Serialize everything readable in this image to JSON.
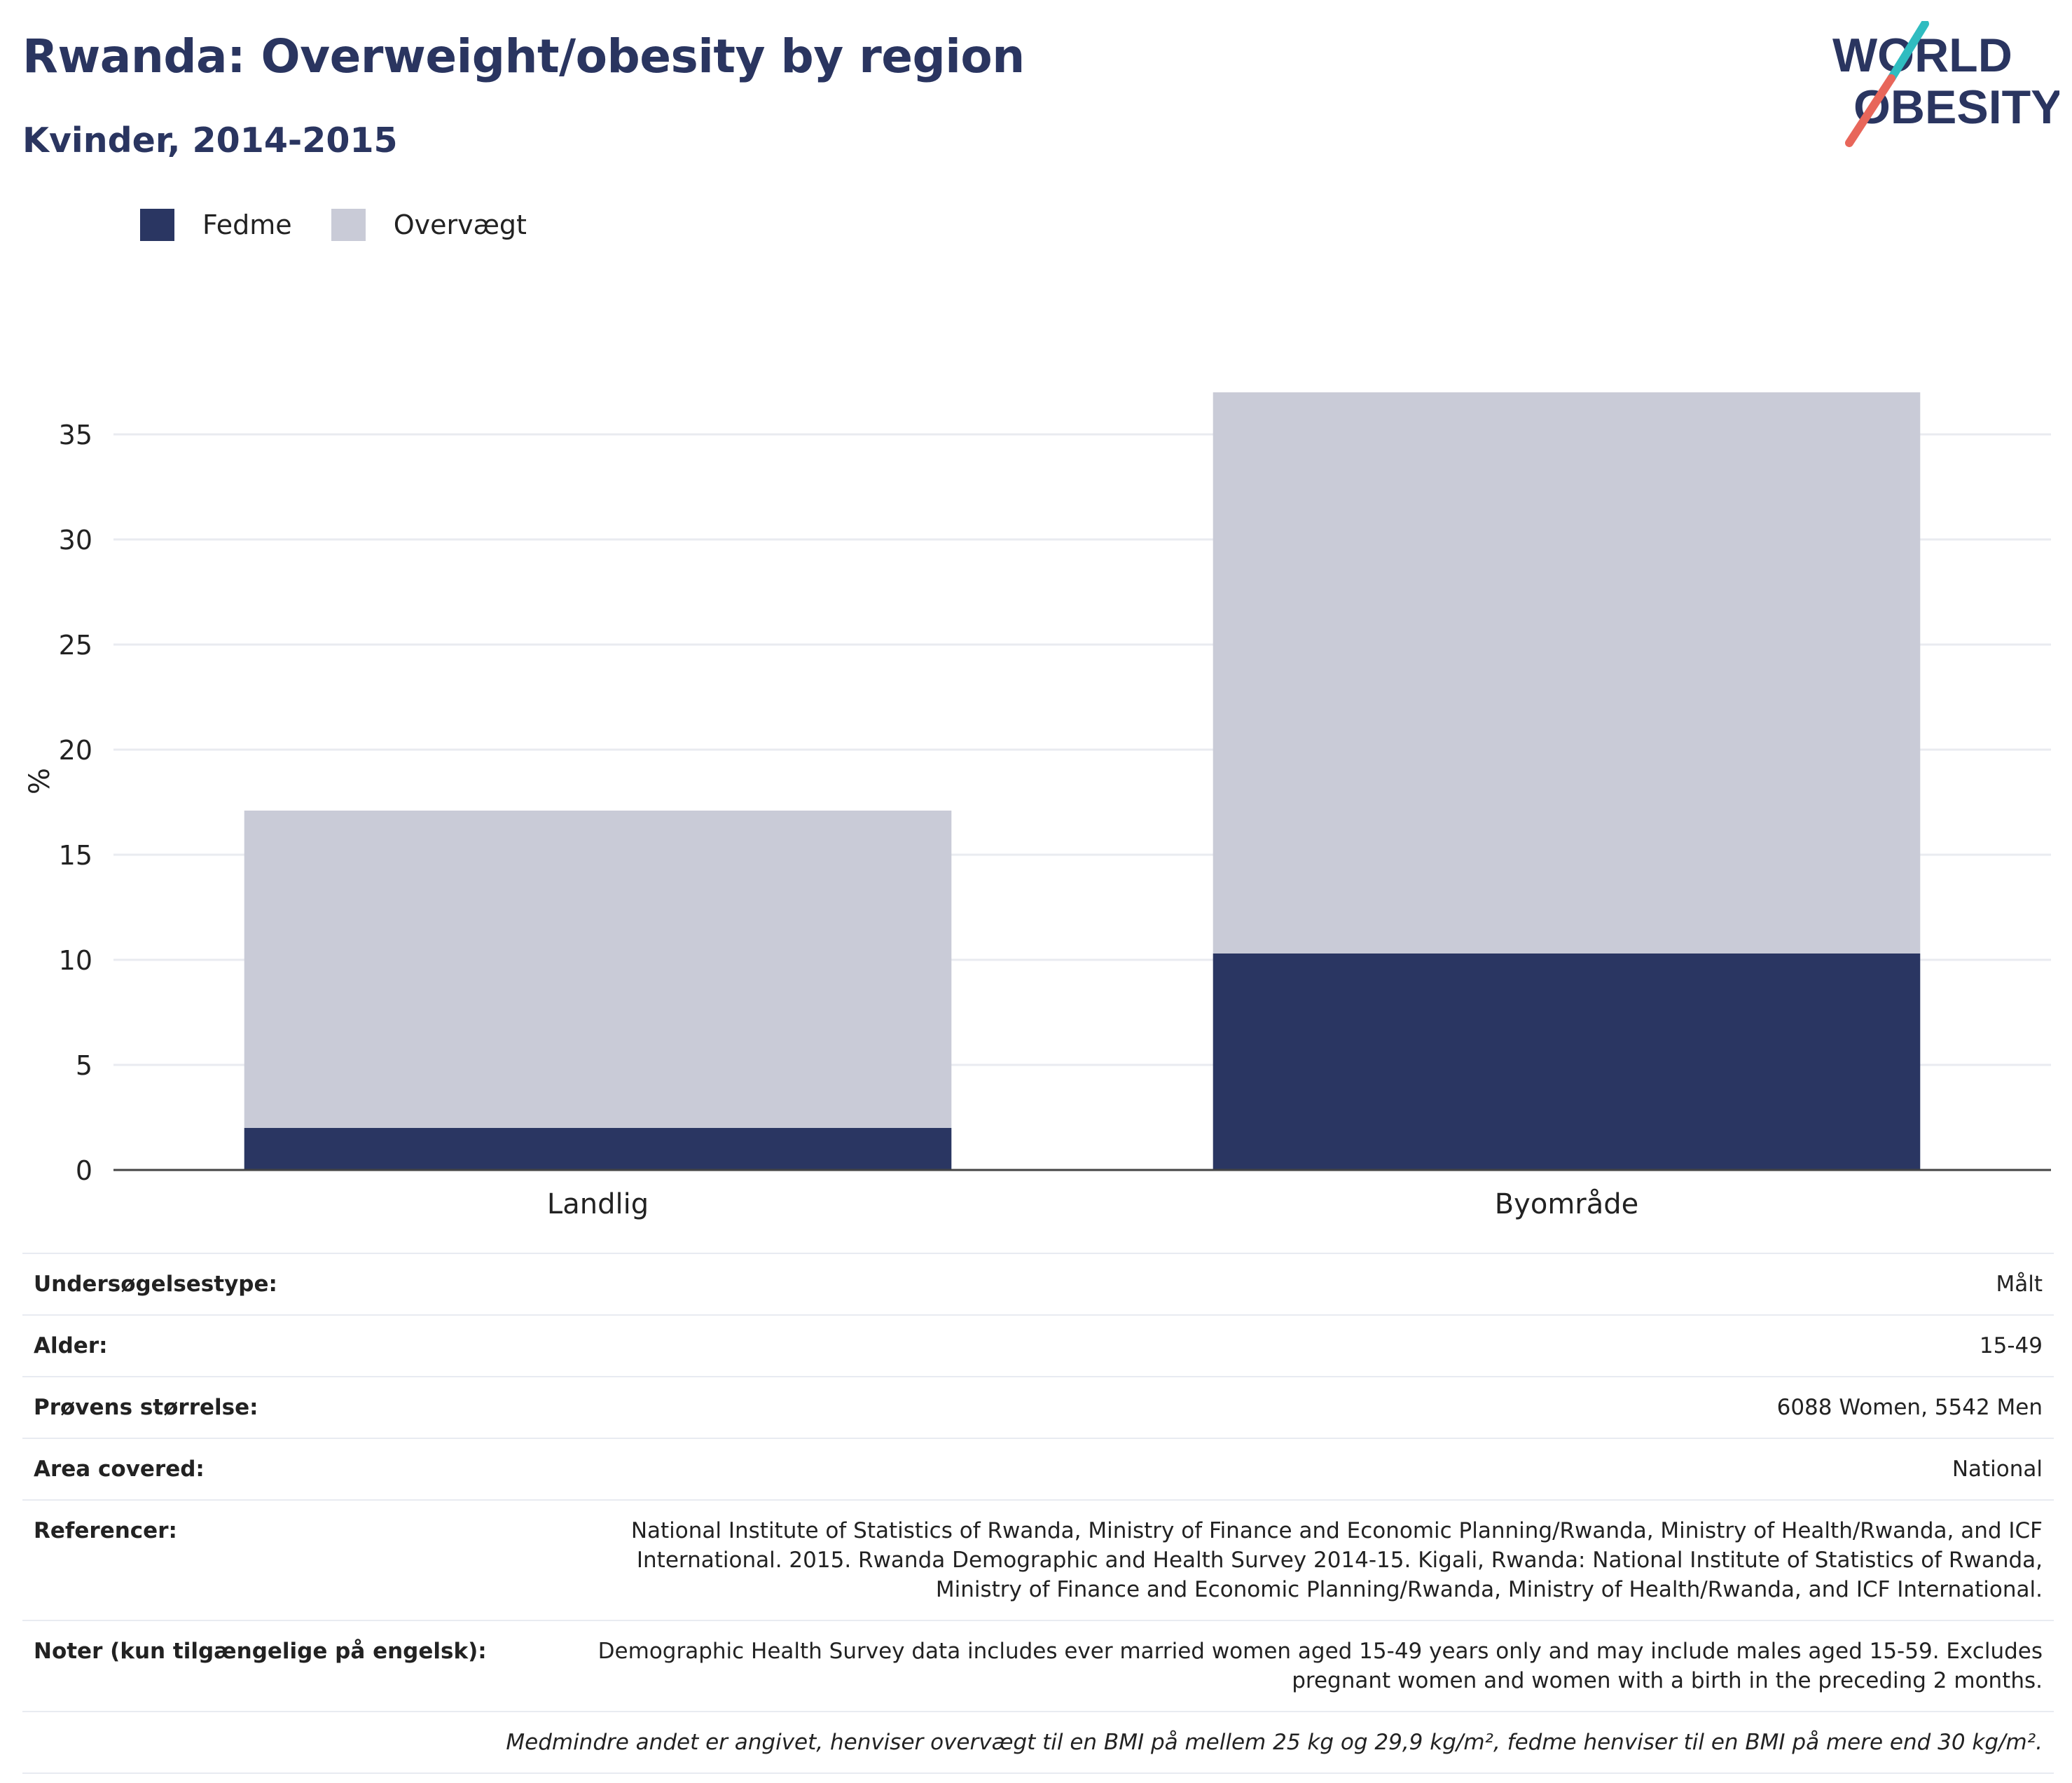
{
  "header": {
    "title": "Rwanda: Overweight/obesity by region",
    "subtitle": "Kvinder, 2014-2015"
  },
  "logo": {
    "line1": "WORLD",
    "line2": "OBESITY"
  },
  "colors": {
    "fedme": "#2a3662",
    "overvaegt": "#c9cbd7",
    "title": "#2a3560",
    "logo_teal": "#2fbcc0",
    "logo_coral": "#e8665a"
  },
  "chart_data": {
    "type": "bar",
    "stacked": true,
    "categories": [
      "Landlig",
      "Byområde"
    ],
    "series": [
      {
        "name": "Fedme",
        "values": [
          2.0,
          10.3
        ]
      },
      {
        "name": "Overvægt",
        "values": [
          15.1,
          26.7
        ]
      }
    ],
    "ylabel": "%",
    "ylim": [
      0,
      37
    ],
    "yticks": [
      0,
      5,
      10,
      15,
      20,
      25,
      30,
      35
    ],
    "grid": true,
    "legend_position": "top-left"
  },
  "info": [
    {
      "key": "Undersøgelsestype:",
      "value": "Målt"
    },
    {
      "key": "Alder:",
      "value": "15-49"
    },
    {
      "key": "Prøvens størrelse:",
      "value": "6088 Women, 5542 Men"
    },
    {
      "key": "Area covered:",
      "value": "National"
    },
    {
      "key": "Referencer:",
      "value": "National Institute of Statistics of Rwanda, Ministry of Finance and Economic Planning/Rwanda, Ministry of Health/Rwanda, and ICF International. 2015. Rwanda Demographic and Health Survey 2014-15. Kigali, Rwanda: National Institute of Statistics of Rwanda, Ministry of Finance and Economic Planning/Rwanda, Ministry of Health/Rwanda, and ICF International."
    },
    {
      "key": "Noter (kun tilgængelige på engelsk):",
      "value": "Demographic Health Survey data includes ever married women aged 15-49 years only and may include males aged 15-59. Excludes pregnant women and women with a birth in the preceding 2 months."
    }
  ],
  "footnote": "Medmindre andet er angivet, henviser overvægt til en BMI på mellem 25 kg og 29,9 kg/m², fedme henviser til en BMI på mere end 30 kg/m²."
}
